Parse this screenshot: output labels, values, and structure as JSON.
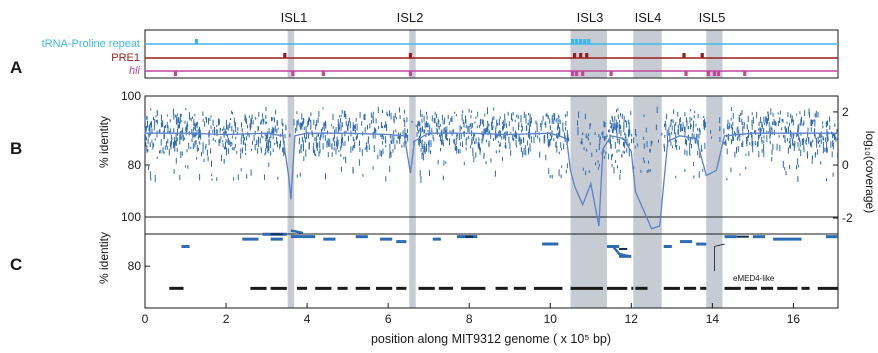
{
  "panel_letters": [
    "A",
    "B",
    "C"
  ],
  "islands": [
    "ISL1",
    "ISL2",
    "ISL3",
    "ISL4",
    "ISL5"
  ],
  "track_labels": {
    "trna": "tRNA-Proline repeat",
    "pre1": "PRE1",
    "hli": "hli"
  },
  "annotation": "eMED4-like",
  "colors": {
    "trna": "#3fb8e8",
    "pre1": "#9b1c1c",
    "hli": "#c2459b",
    "identity": "#2d6bb3",
    "coverage": "#5b82c9",
    "island": "#c7ccd4",
    "black": "#1a1a1a"
  },
  "chart_data": [
    {
      "type": "scatter",
      "panel": "A",
      "title": "",
      "xlim": [
        0,
        17.1
      ],
      "island_ranges": [
        [
          3.52,
          3.68
        ],
        [
          6.52,
          6.68
        ],
        [
          10.5,
          11.4
        ],
        [
          12.05,
          12.75
        ],
        [
          13.85,
          14.25
        ]
      ],
      "tracks": [
        {
          "name": "tRNA-Proline repeat",
          "marks": [
            1.27,
            10.55,
            10.65,
            10.75,
            10.85,
            10.95
          ]
        },
        {
          "name": "PRE1",
          "marks": [
            3.45,
            6.55,
            10.6,
            10.75,
            10.9,
            13.3,
            13.75
          ]
        },
        {
          "name": "hli",
          "marks": [
            0.75,
            3.65,
            4.4,
            6.55,
            10.55,
            10.65,
            10.8,
            11.5,
            13.35,
            13.9,
            14.05,
            14.15,
            14.8
          ]
        }
      ]
    },
    {
      "type": "scatter",
      "panel": "B",
      "title": "",
      "xlabel": "",
      "ylabel": "% identity",
      "ylabel_right": "log₁₀(coverage)",
      "ylim": [
        60,
        100
      ],
      "yticks": [
        80,
        100
      ],
      "ylim_right": [
        -2.6,
        2.6
      ],
      "yticks_right": [
        -2,
        0,
        2
      ],
      "xlim": [
        0,
        17.1
      ],
      "island_ranges": [
        [
          3.52,
          3.68
        ],
        [
          6.52,
          6.68
        ],
        [
          10.5,
          11.4
        ],
        [
          12.05,
          12.75
        ],
        [
          13.85,
          14.25
        ]
      ],
      "series": [
        {
          "name": "% identity",
          "y_range": [
            85,
            95
          ]
        },
        {
          "name": "log coverage",
          "x": [
            0,
            1,
            2,
            3,
            3.4,
            3.55,
            3.6,
            3.7,
            4,
            5,
            6,
            6.4,
            6.55,
            6.65,
            7,
            8,
            9,
            10,
            10.4,
            10.5,
            10.6,
            10.8,
            11,
            11.2,
            11.3,
            11.5,
            11.8,
            12,
            12.1,
            12.3,
            12.5,
            12.7,
            12.9,
            13.2,
            13.6,
            13.85,
            14.1,
            14.3,
            15,
            16,
            17.1
          ],
          "values": [
            1.2,
            1.2,
            1.15,
            1.2,
            1.1,
            -0.5,
            -1.3,
            1.1,
            1.2,
            1.2,
            1.15,
            1.1,
            -0.3,
            0.9,
            1.2,
            1.2,
            1.15,
            1.2,
            1.0,
            -0.2,
            -0.8,
            -1.5,
            -0.7,
            -2.3,
            0.6,
            1.1,
            1.0,
            0.5,
            -1.0,
            -1.7,
            -2.4,
            -2.3,
            0.9,
            1.1,
            1.0,
            -0.4,
            -0.2,
            1.1,
            1.2,
            1.2,
            1.2
          ]
        }
      ]
    },
    {
      "type": "line",
      "panel": "C",
      "title": "",
      "xlabel": "position along MIT9312 genome ( x 10⁵ bp)",
      "ylabel": "% identity",
      "ylim": [
        63,
        100
      ],
      "yticks": [
        80,
        100
      ],
      "xlim": [
        0,
        17.1
      ],
      "xticks": [
        0,
        2,
        4,
        6,
        8,
        10,
        12,
        14,
        16
      ],
      "island_ranges": [
        [
          3.52,
          3.68
        ],
        [
          6.52,
          6.68
        ],
        [
          10.5,
          11.4
        ],
        [
          12.05,
          12.75
        ],
        [
          13.85,
          14.25
        ]
      ],
      "segments": [
        [
          0.9,
          1.1,
          88
        ],
        [
          2.4,
          2.8,
          91
        ],
        [
          2.9,
          3.5,
          93
        ],
        [
          3.1,
          3.4,
          91
        ],
        [
          3.6,
          4.2,
          92
        ],
        [
          4.4,
          4.7,
          91
        ],
        [
          5.2,
          5.5,
          92
        ],
        [
          5.8,
          6.1,
          91
        ],
        [
          6.2,
          6.45,
          90
        ],
        [
          7.1,
          7.3,
          91
        ],
        [
          7.7,
          8.2,
          92
        ],
        [
          9.8,
          10.2,
          89
        ],
        [
          11.4,
          11.7,
          88
        ],
        [
          11.7,
          12.0,
          84
        ],
        [
          12.8,
          13.0,
          88
        ],
        [
          13.2,
          13.5,
          90
        ],
        [
          13.6,
          13.85,
          89
        ],
        [
          14.3,
          14.6,
          92
        ],
        [
          15.0,
          15.3,
          92
        ],
        [
          15.5,
          16.2,
          91
        ],
        [
          16.8,
          17.1,
          92
        ]
      ],
      "coverage_blocks": [
        [
          0.6,
          0.95
        ],
        [
          2.6,
          3.0
        ],
        [
          3.1,
          3.5
        ],
        [
          3.75,
          4.0
        ],
        [
          4.2,
          4.6
        ],
        [
          4.75,
          5.0
        ],
        [
          5.2,
          5.55
        ],
        [
          5.7,
          6.1
        ],
        [
          6.2,
          6.45
        ],
        [
          6.75,
          7.15
        ],
        [
          7.25,
          7.6
        ],
        [
          7.8,
          8.4
        ],
        [
          8.65,
          8.95
        ],
        [
          9.1,
          9.4
        ],
        [
          9.6,
          10.3
        ],
        [
          10.5,
          11.3
        ],
        [
          11.4,
          11.9
        ],
        [
          12.0,
          12.05
        ],
        [
          12.1,
          12.4
        ],
        [
          12.8,
          13.2
        ],
        [
          13.3,
          13.6
        ],
        [
          13.7,
          13.85
        ],
        [
          14.3,
          14.7
        ],
        [
          14.8,
          15.1
        ],
        [
          15.2,
          15.5
        ],
        [
          15.6,
          16.1
        ],
        [
          16.2,
          16.4
        ],
        [
          16.6,
          17.1
        ]
      ]
    }
  ]
}
